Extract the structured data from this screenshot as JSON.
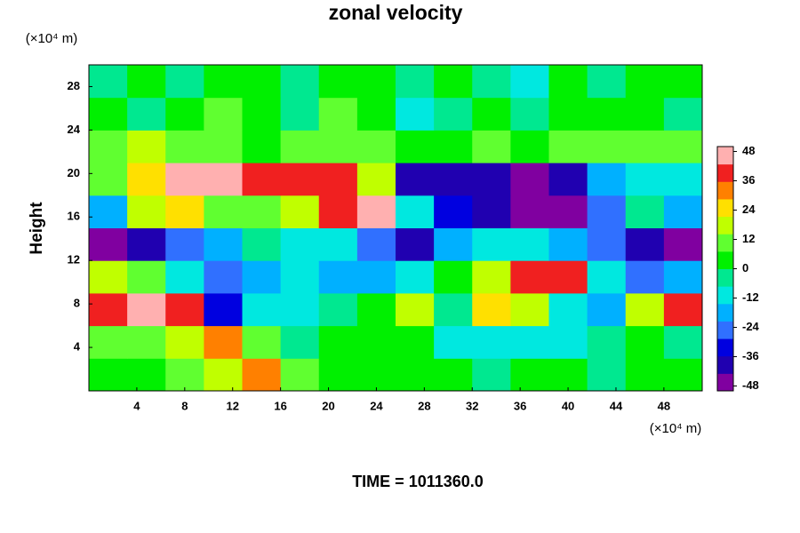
{
  "chart_data": {
    "type": "heatmap",
    "title": "zonal velocity",
    "ylabel": "Height",
    "yunit": "(×10⁴ m)",
    "xunit": "(×10⁴ m)",
    "annotation": "TIME = 1011360.0",
    "xlim": [
      0,
      51.2
    ],
    "ylim": [
      0,
      30
    ],
    "xticks": [
      4,
      8,
      12,
      16,
      20,
      24,
      28,
      32,
      36,
      40,
      44,
      48
    ],
    "yticks": [
      4,
      8,
      12,
      16,
      20,
      24,
      28
    ],
    "x_edges": [
      0,
      3.2,
      6.4,
      9.6,
      12.8,
      16,
      19.2,
      22.4,
      25.6,
      28.8,
      32,
      35.2,
      38.4,
      41.6,
      44.8,
      48,
      51.2
    ],
    "y_edges": [
      0,
      3,
      6,
      9,
      12,
      15,
      18,
      21,
      24,
      27,
      30
    ],
    "values": [
      [
        0,
        4,
        8,
        20,
        30,
        10,
        4,
        0,
        0,
        4,
        -4,
        0,
        4,
        -4,
        0,
        0
      ],
      [
        8,
        10,
        20,
        30,
        10,
        -4,
        0,
        4,
        0,
        -8,
        -10,
        -12,
        -8,
        -4,
        0,
        -4
      ],
      [
        40,
        44,
        36,
        -30,
        -12,
        -8,
        -4,
        0,
        20,
        -4,
        24,
        20,
        -12,
        -16,
        20,
        36
      ],
      [
        20,
        12,
        -8,
        -24,
        -20,
        -12,
        -16,
        -20,
        -8,
        4,
        16,
        36,
        40,
        -12,
        -24,
        -16
      ],
      [
        -44,
        -40,
        -28,
        -20,
        -4,
        -8,
        -12,
        -28,
        -36,
        -20,
        -12,
        -8,
        -20,
        -28,
        -36,
        -44
      ],
      [
        -20,
        20,
        24,
        12,
        8,
        16,
        36,
        44,
        -8,
        -32,
        -40,
        -48,
        -48,
        -24,
        -4,
        -16
      ],
      [
        12,
        28,
        44,
        44,
        40,
        40,
        40,
        20,
        -36,
        -40,
        -40,
        -44,
        -40,
        -20,
        -8,
        -12
      ],
      [
        12,
        16,
        12,
        8,
        4,
        12,
        8,
        8,
        4,
        4,
        8,
        4,
        8,
        8,
        12,
        8
      ],
      [
        0,
        -4,
        4,
        8,
        4,
        -4,
        8,
        4,
        -8,
        -4,
        4,
        -4,
        0,
        4,
        0,
        -4
      ],
      [
        -4,
        0,
        -4,
        4,
        0,
        -4,
        0,
        4,
        -4,
        0,
        -4,
        -8,
        0,
        -4,
        0,
        4
      ]
    ],
    "clim": [
      -50,
      50
    ],
    "cticks": [
      -48,
      -36,
      -24,
      -12,
      0,
      12,
      24,
      36,
      48
    ],
    "colors": [
      "#8000a0",
      "#2000b0",
      "#0000e0",
      "#3070ff",
      "#00b0ff",
      "#00e8e0",
      "#00e890",
      "#00f000",
      "#60ff30",
      "#c0ff00",
      "#ffe000",
      "#ff8000",
      "#f02020",
      "#ffb0b0"
    ]
  }
}
